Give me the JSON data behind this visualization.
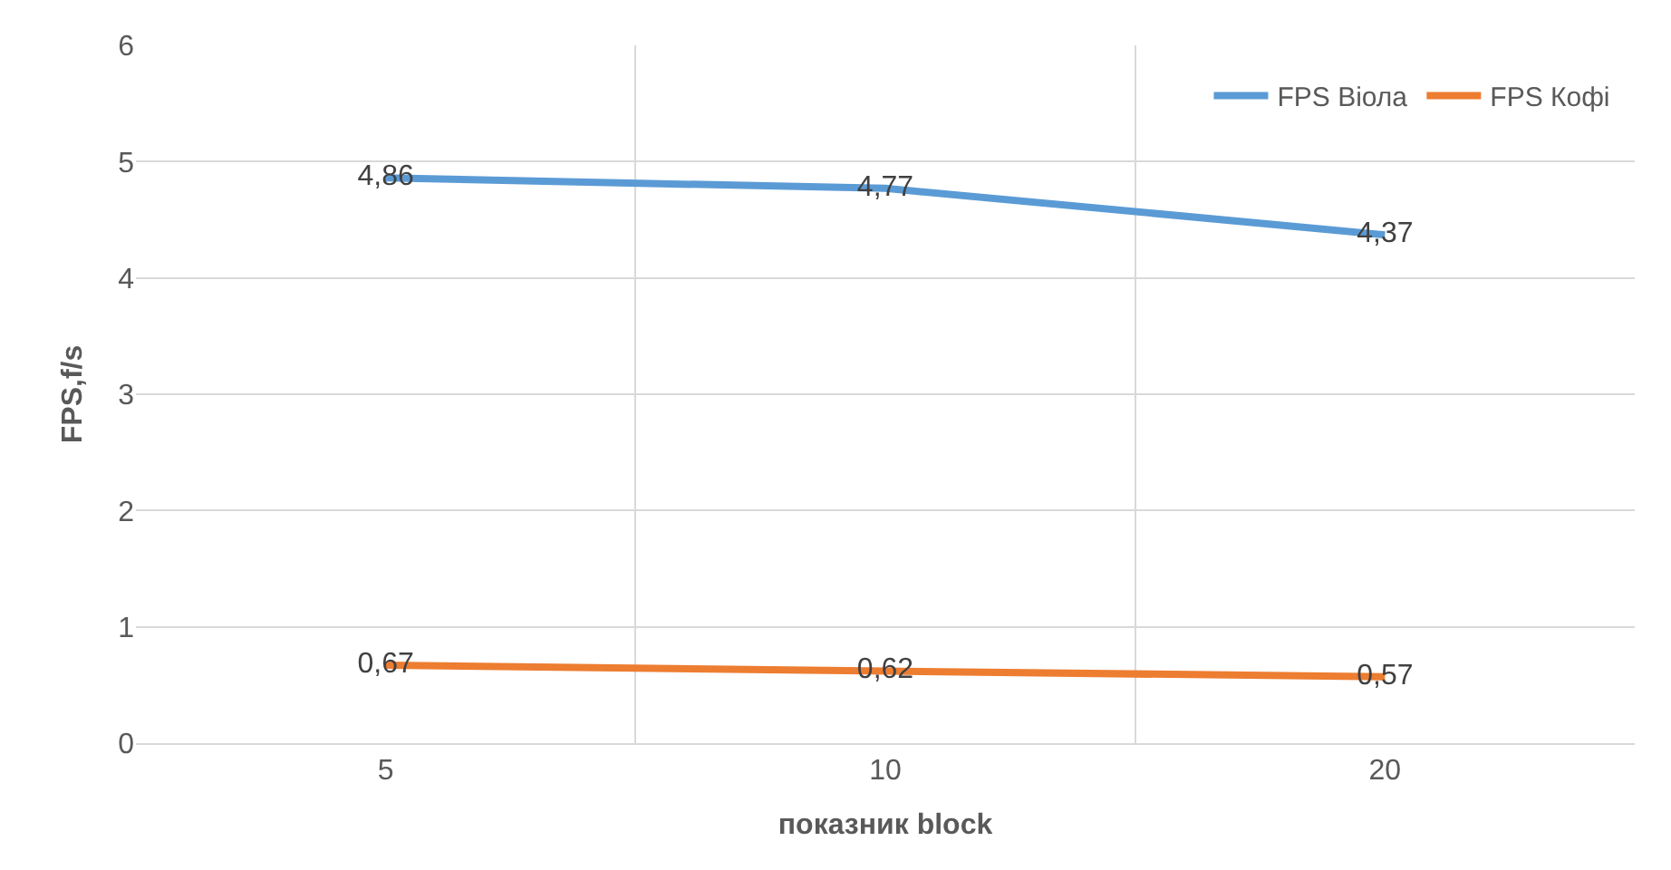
{
  "chart_data": {
    "type": "line",
    "xlabel": "показник block",
    "ylabel": "FPS,f/s",
    "categories": [
      "5",
      "10",
      "20"
    ],
    "series": [
      {
        "name": "FPS Віола",
        "color": "#5b9bd5",
        "values": [
          4.86,
          4.77,
          4.37
        ],
        "value_labels": [
          "4,86",
          "4,77",
          "4,37"
        ]
      },
      {
        "name": "FPS Кофі",
        "color": "#ed7d31",
        "values": [
          0.67,
          0.62,
          0.57
        ],
        "value_labels": [
          "0,67",
          "0,62",
          "0,57"
        ]
      }
    ],
    "ylim": [
      0,
      6
    ],
    "yticks": [
      0,
      1,
      2,
      3,
      4,
      5,
      6
    ],
    "grid": true,
    "legend": "top right",
    "marker": "none",
    "line_style": "solid"
  }
}
